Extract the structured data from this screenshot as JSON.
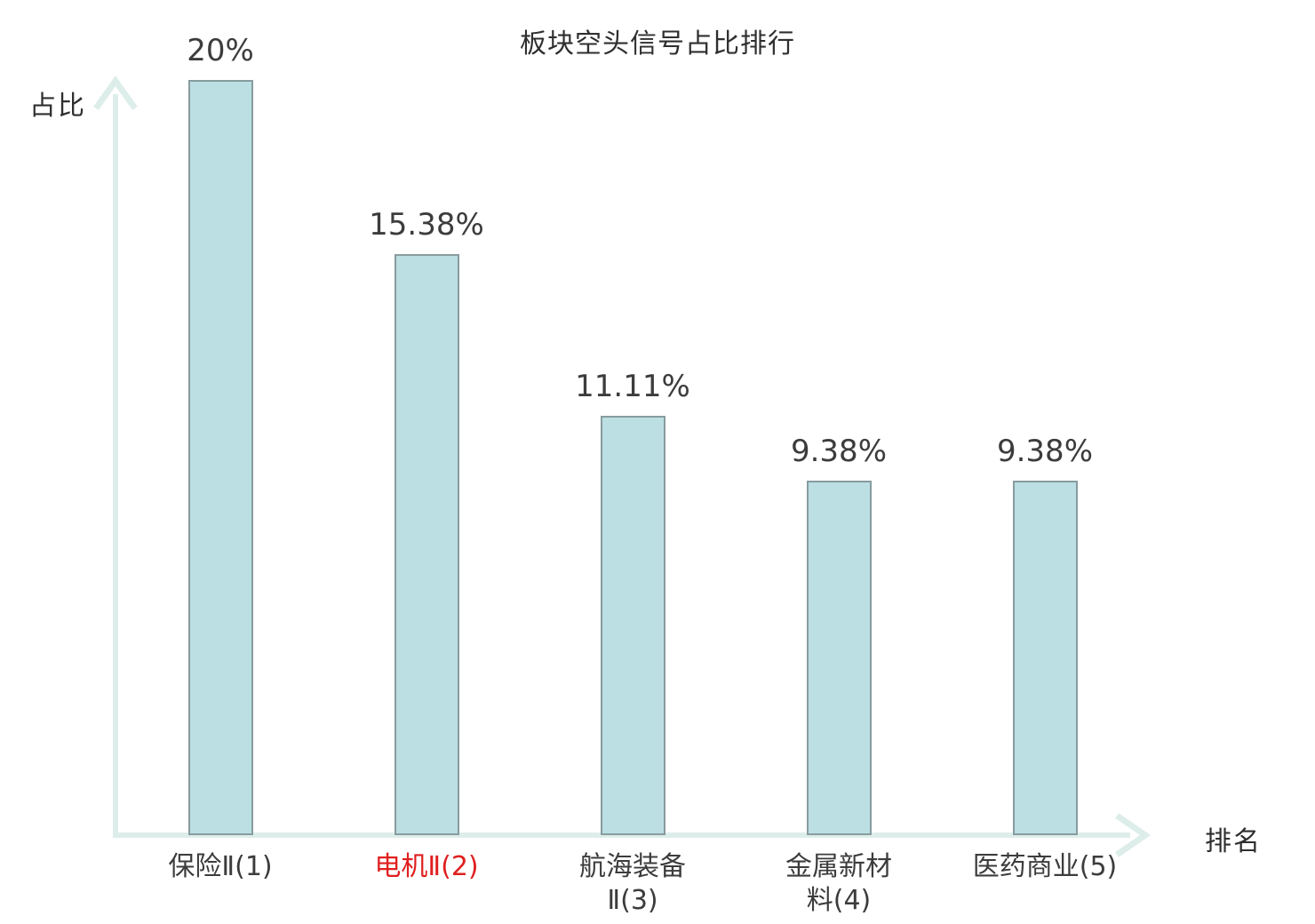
{
  "title": "板块空头信号占比排行",
  "y_axis_label": "占比",
  "x_axis_label": "排名",
  "colors": {
    "bar_fill": "#bbdfe2",
    "bar_border": "#889c9f",
    "axis": "#ddeeea",
    "text": "#3c3c3c",
    "highlight": "#e01f1f",
    "background": "#ffffff"
  },
  "chart_data": {
    "type": "bar",
    "title": "板块空头信号占比排行",
    "xlabel": "排名",
    "ylabel": "占比",
    "ylim": [
      0,
      20
    ],
    "grid": false,
    "legend": "none",
    "categories": [
      "保险Ⅱ(1)",
      "电机Ⅱ(2)",
      "航海装备Ⅱ(3)",
      "金属新材料(4)",
      "医药商业(5)"
    ],
    "values": [
      20,
      15.38,
      11.11,
      9.38,
      9.38
    ],
    "value_labels": [
      "20%",
      "15.38%",
      "11.11%",
      "9.38%",
      "9.38%"
    ],
    "bars": [
      {
        "category_lines": [
          "保险Ⅱ(1)"
        ],
        "value": 20,
        "label": "20%",
        "highlighted": false
      },
      {
        "category_lines": [
          "电机Ⅱ(2)"
        ],
        "value": 15.38,
        "label": "15.38%",
        "highlighted": true
      },
      {
        "category_lines": [
          "航海装备",
          "Ⅱ(3)"
        ],
        "value": 11.11,
        "label": "11.11%",
        "highlighted": false
      },
      {
        "category_lines": [
          "金属新材",
          "料(4)"
        ],
        "value": 9.38,
        "label": "9.38%",
        "highlighted": false
      },
      {
        "category_lines": [
          "医药商业(5)"
        ],
        "value": 9.38,
        "label": "9.38%",
        "highlighted": false
      }
    ]
  }
}
